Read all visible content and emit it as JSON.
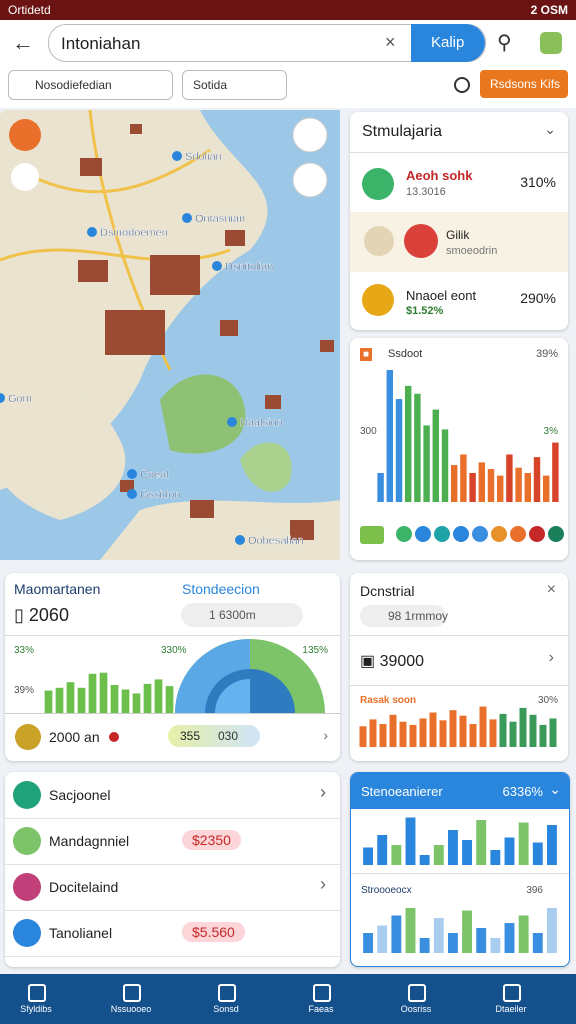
{
  "status": {
    "left": "Ortidetd",
    "right": "2 OSM"
  },
  "search": {
    "query": "Intoniahan",
    "button": "Kalip"
  },
  "filters": {
    "input": "Nosodiefedian",
    "chip": "Sotida",
    "action": "Rsdsons Kifs"
  },
  "map": {
    "labels": [
      "Dsinodoemen",
      "Ontasnian",
      "Dsnitolian",
      "Naalsion",
      "Coeal",
      "Gssidon",
      "Oobesalian",
      "Gom",
      "Sdolian"
    ]
  },
  "summary": {
    "title": "Stmulajaria",
    "rows": [
      {
        "name": "Aeoh sohk",
        "sub": "13.3016",
        "value": "310%"
      },
      {
        "name": "Gilik",
        "sub": "smoeodrin"
      },
      {
        "name": "Nnaoel eont",
        "sub": "$1.52%",
        "value": "290%"
      }
    ]
  },
  "chart_main": {
    "badge": "Ssdoot",
    "label": "39%",
    "axis": "300",
    "note": "3%",
    "ylim": [
      0,
      100
    ],
    "values": [
      22,
      100,
      78,
      88,
      82,
      58,
      70,
      55,
      28,
      36,
      22,
      30,
      25,
      20,
      36,
      26,
      22,
      34,
      20,
      45
    ],
    "colors": [
      "#3a8ee0",
      "#3a8ee0",
      "#3a8ee0",
      "#4caf50",
      "#4caf50",
      "#4caf50",
      "#4caf50",
      "#4caf50",
      "#e8702a",
      "#e8702a",
      "#d8442a",
      "#e8702a",
      "#e8702a",
      "#e8702a",
      "#d8442a",
      "#e8702a",
      "#e8702a",
      "#d8442a",
      "#e8702a",
      "#d8442a"
    ]
  },
  "market": {
    "title": "Maomartanen",
    "subtitle": "Stondeecion",
    "value": "2060",
    "pill": "1 6300m",
    "left_label": "33%",
    "mid_label": "330%",
    "right_label": "135%",
    "axis": "39%",
    "footer": "2000 an",
    "tag_a": "355",
    "tag_b": "030",
    "ylim": [
      0,
      100
    ],
    "values": [
      40,
      45,
      55,
      45,
      70,
      72,
      50,
      42,
      35,
      52,
      60,
      48
    ]
  },
  "industrial": {
    "title": "Dcnstrial",
    "sub": "98 1rmmoy",
    "value": "39000",
    "chart_label": "Rasak soon",
    "chart_value": "30%",
    "ylim": [
      0,
      100
    ],
    "values": [
      45,
      60,
      50,
      70,
      55,
      48,
      62,
      75,
      58,
      80,
      68,
      50,
      88,
      60,
      72,
      55,
      85,
      70,
      48,
      62
    ],
    "colors": [
      "#e8702a",
      "#e8702a",
      "#e8702a",
      "#e8702a",
      "#e8702a",
      "#e8702a",
      "#e8702a",
      "#e8702a",
      "#e8702a",
      "#e8702a",
      "#e8702a",
      "#e8702a",
      "#e8702a",
      "#e8702a",
      "#3a9a5a",
      "#3a9a5a",
      "#3a9a5a",
      "#3a9a5a",
      "#3a9a5a",
      "#3a9a5a"
    ]
  },
  "list": [
    {
      "name": "Sacjoonel"
    },
    {
      "name": "Mandagnniel",
      "amount": "$2350"
    },
    {
      "name": "Docitelaind"
    },
    {
      "name": "Tanolianel",
      "amount": "$5.560"
    }
  ],
  "blue_card": {
    "title": "Stenoeanierer",
    "value": "6336%",
    "sub": "Stroooeocx",
    "sub_value": "396",
    "ylim": [
      0,
      100
    ],
    "values_top": [
      35,
      60,
      40,
      95,
      20,
      40,
      70,
      50,
      90,
      30,
      55,
      85,
      45,
      80
    ],
    "values_bottom": [
      40,
      55,
      75,
      90,
      30,
      70,
      40,
      85,
      50,
      30,
      60,
      75,
      40,
      90
    ]
  },
  "nav": [
    "Sfyldibs",
    "Nssuooeo",
    "Sonsd",
    "Faeas",
    "Oosriss",
    "Dtaeiler"
  ]
}
